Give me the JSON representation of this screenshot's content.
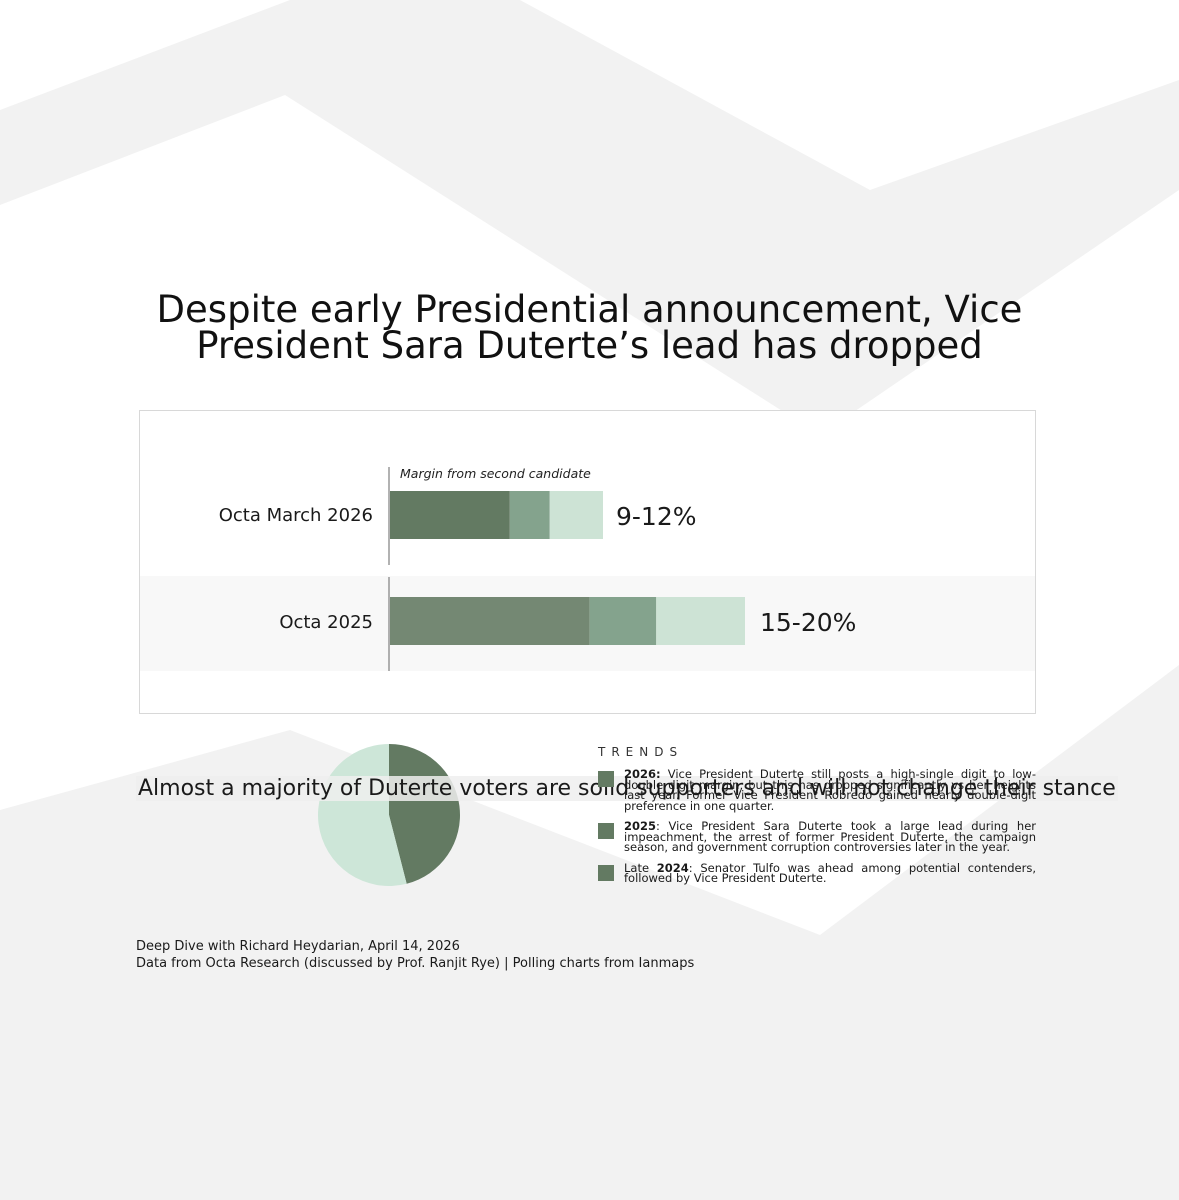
{
  "title": "Despite early Presidential announcement, Vice President Sara Duterte’s lead has dropped",
  "chart_data": [
    {
      "type": "bar",
      "orientation": "horizontal",
      "stacked": true,
      "annotation": "Margin from second candidate",
      "categories": [
        "Octa March 2026",
        "Octa 2025"
      ],
      "ranges": [
        {
          "low": 9,
          "high": 12,
          "label": "9-12%"
        },
        {
          "low": 15,
          "high": 20,
          "label": "15-20%"
        }
      ],
      "unit": "%",
      "grid": false,
      "colors": {
        "core_2026": "#637a62",
        "core_2025": "#748873",
        "mid": "#84a38d",
        "light": "#cde3d5"
      }
    },
    {
      "type": "pie",
      "caption": "Almost a majority of Duterte voters are solid supporters and will not change their stance",
      "slices": [
        {
          "value": 46,
          "color": "#637a62"
        },
        {
          "value": 54,
          "color": "#cde6d8"
        }
      ]
    }
  ],
  "trends": {
    "heading": "TRENDS",
    "swatch_color": "#637a62",
    "items": [
      {
        "prefix": "",
        "bold": "2026:",
        "text": " Vice President Duterte still posts a high-single digit to low-double digit margin, but this has dropped significantly vs her heights last year. Former Vice President Robredo gained nearly double-digit preference in one quarter."
      },
      {
        "prefix": "",
        "bold": "2025",
        "text": ": Vice President Sara Duterte took a large lead during her impeachment, the arrest of former President Duterte, the campaign season, and government corruption controversies later in the year."
      },
      {
        "prefix": "Late ",
        "bold": "2024",
        "text": ": Senator Tulfo was ahead among potential contenders, followed by Vice President Duterte."
      }
    ]
  },
  "footer": {
    "line1": "Deep Dive with Richard Heydarian, April 14, 2026",
    "line2": "Data from Octa Research (discussed by Prof. Ranjit Rye) | Polling charts from Ianmaps"
  }
}
